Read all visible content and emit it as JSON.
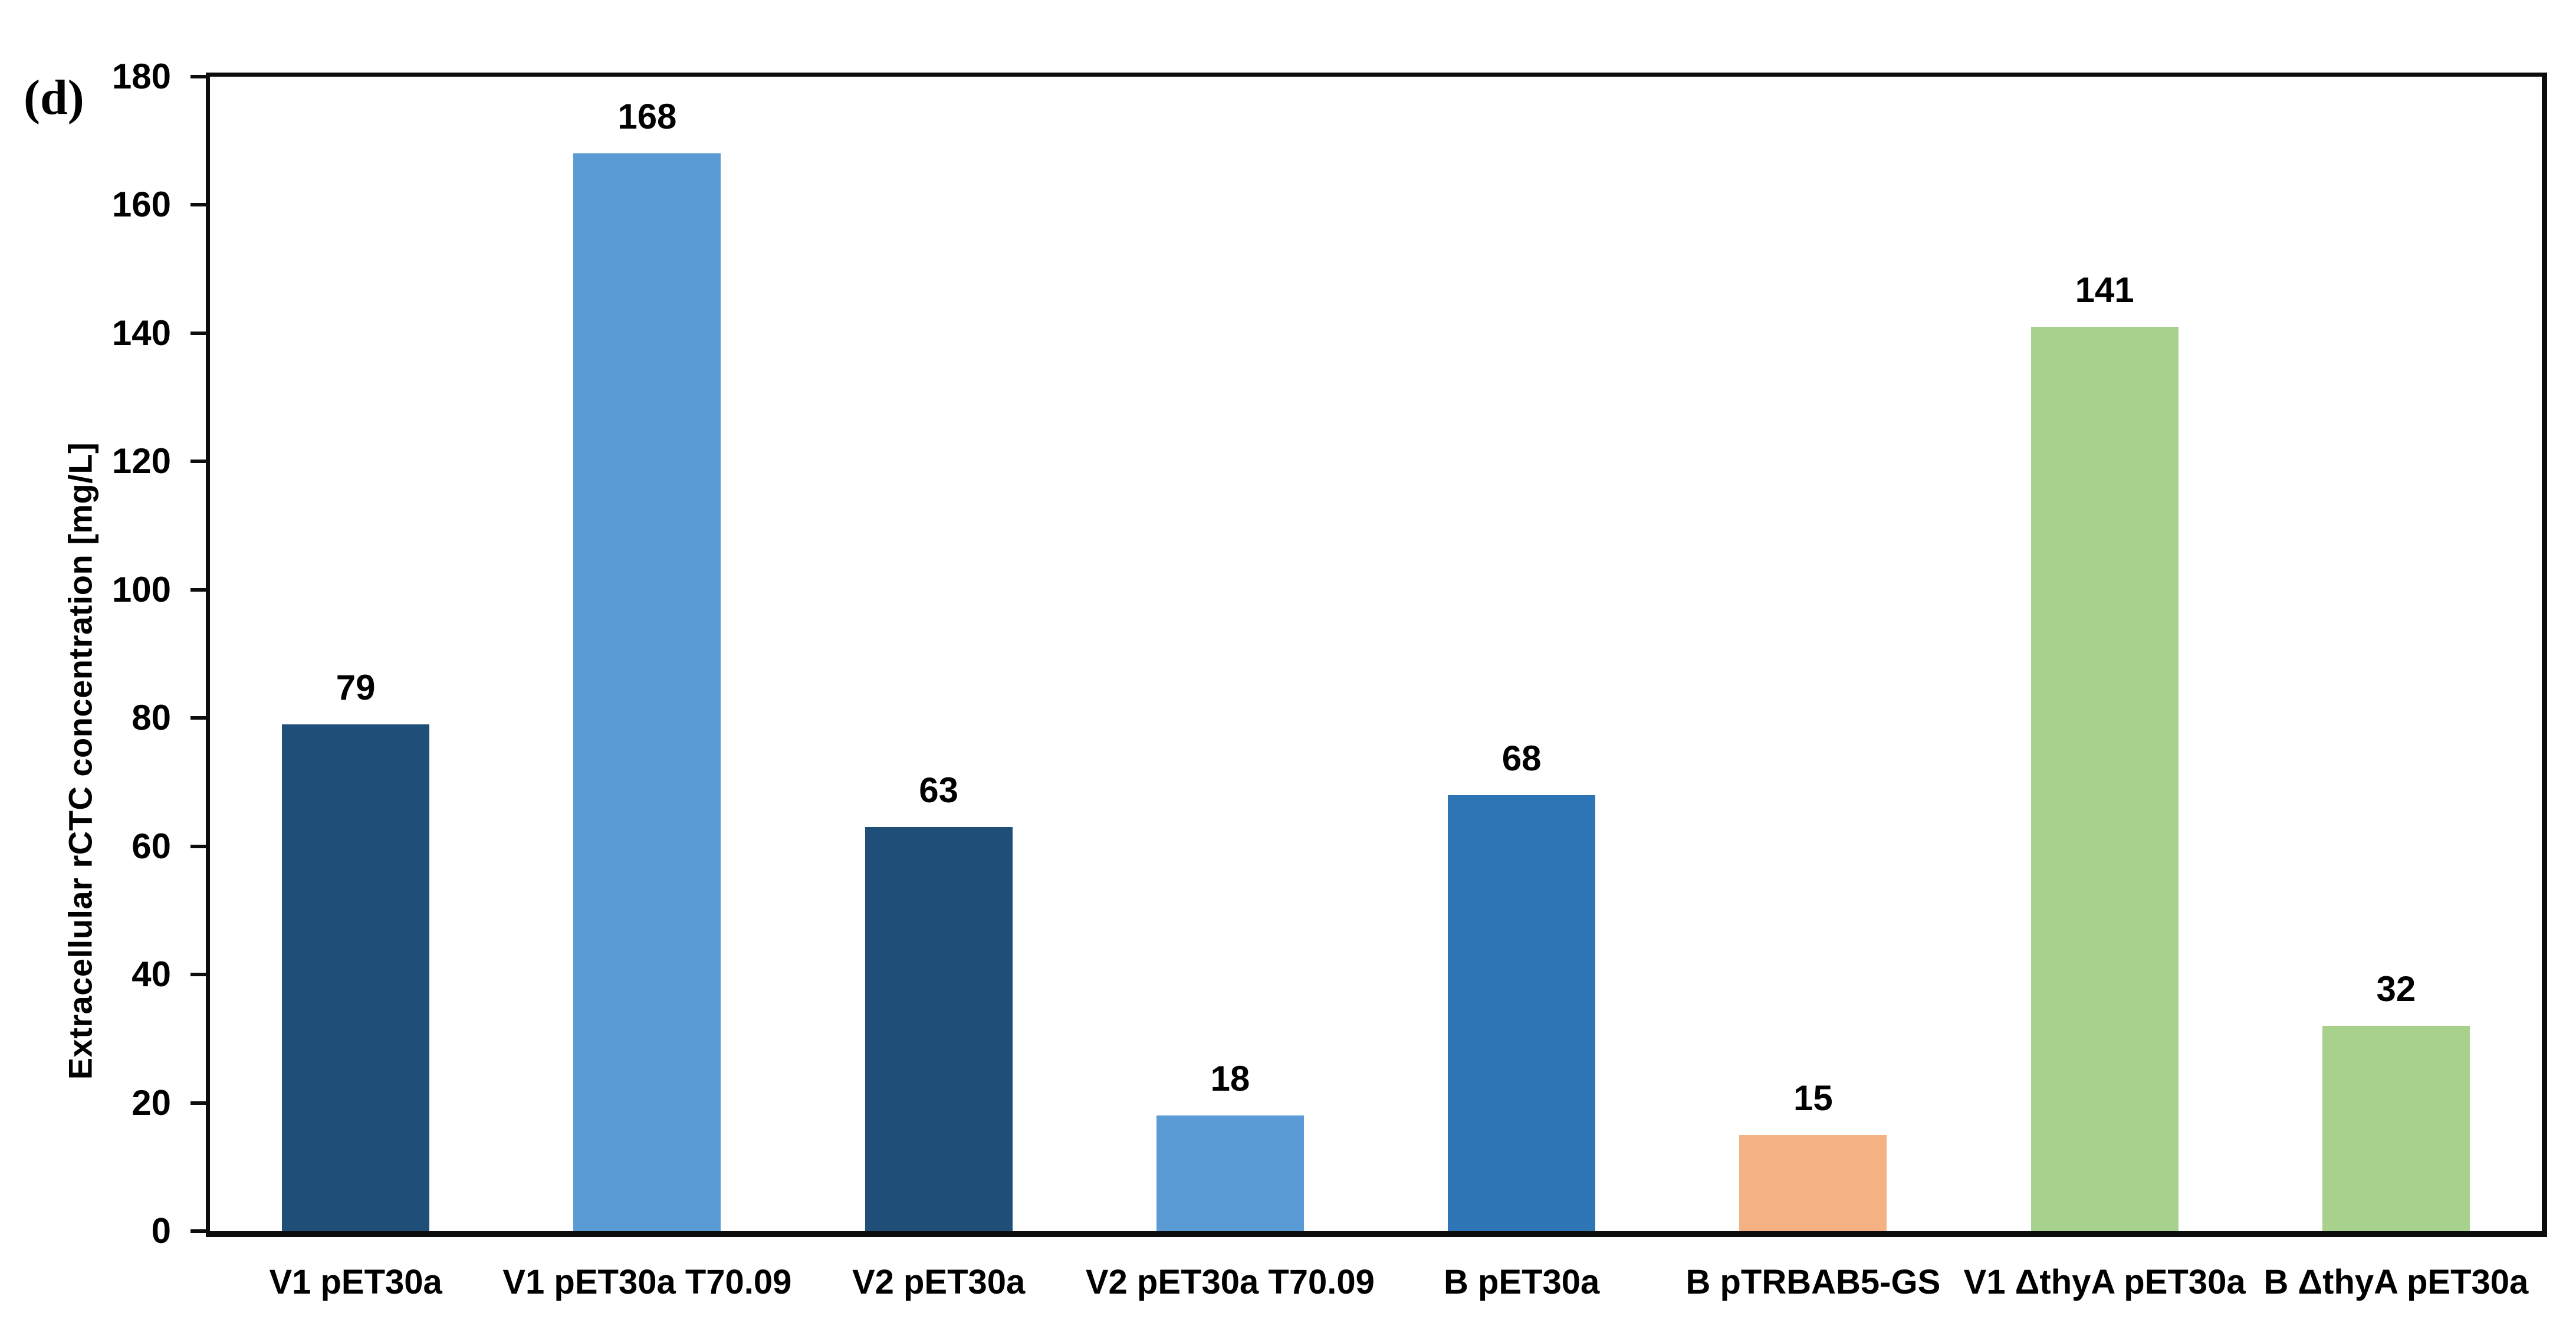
{
  "panel_label": "(d)",
  "background_color": "#FFFFFF",
  "text_color": "#000000",
  "axis_color": "#0D0D0D",
  "chart_data": {
    "type": "bar",
    "title": "",
    "xlabel": "",
    "ylabel": "Extracellular rCTC concentration [mg/L]",
    "ylim": [
      0,
      180
    ],
    "ytick_interval": 20,
    "yticks": [
      0,
      20,
      40,
      60,
      80,
      100,
      120,
      140,
      160,
      180
    ],
    "grid": false,
    "legend": "none",
    "categories": [
      "V1 pET30a",
      "V1 pET30a T70.09",
      "V2 pET30a",
      "V2 pET30a T70.09",
      "B pET30a",
      "B pTRBAB5-GS",
      "V1 ΔthyA pET30a",
      "B ΔthyA pET30a"
    ],
    "values": [
      79,
      168,
      63,
      18,
      68,
      15,
      141,
      32
    ],
    "bar_colors": [
      "#1F4E79",
      "#5B9BD5",
      "#1F4E79",
      "#5B9BD5",
      "#2E75B6",
      "#F4B183",
      "#A9D18E",
      "#A9D18E"
    ]
  }
}
